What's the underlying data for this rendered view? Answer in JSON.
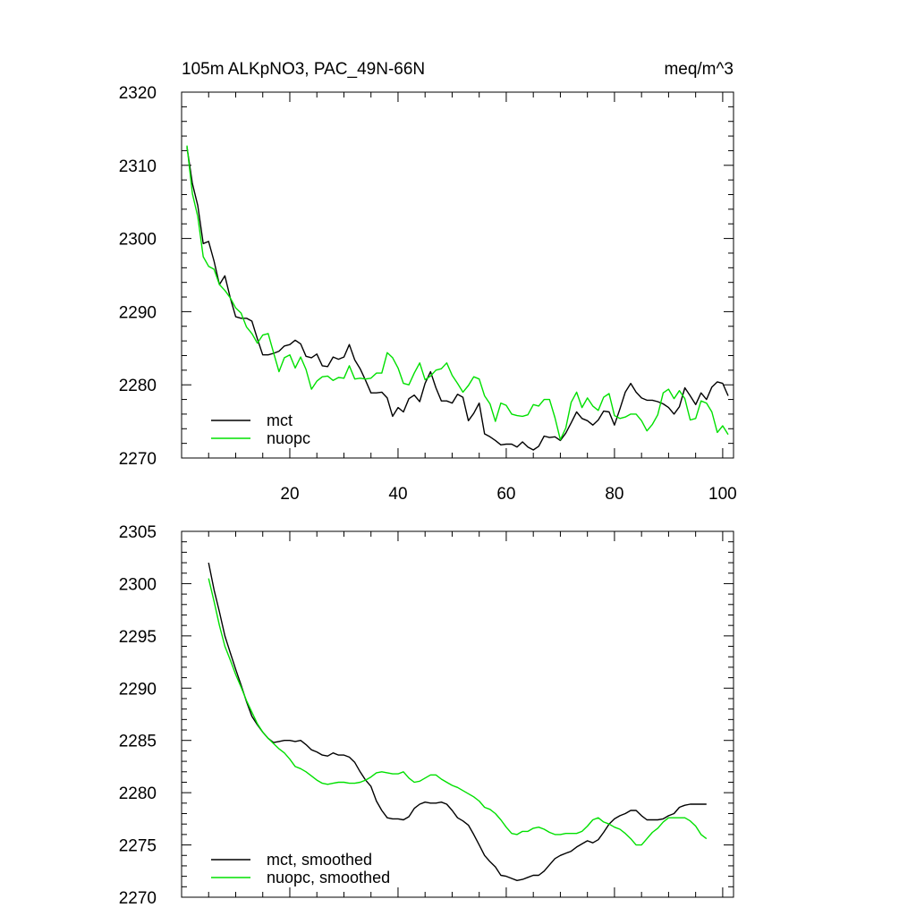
{
  "colors": {
    "mct": "#000000",
    "nuopc": "#00e000"
  },
  "chart_data": [
    {
      "type": "line",
      "title": "105m ALKpNO3, PAC_49N-66N",
      "units": "meq/m^3",
      "xlim": [
        0,
        102
      ],
      "ylim": [
        2270,
        2320
      ],
      "xticks": [
        20,
        40,
        60,
        80,
        100
      ],
      "xtick_labels": [
        "20",
        "40",
        "60",
        "80",
        "100"
      ],
      "xminor": [
        5,
        10,
        15,
        25,
        30,
        35,
        45,
        50,
        55,
        65,
        70,
        75,
        85,
        90,
        95
      ],
      "yticks": [
        2270,
        2280,
        2290,
        2300,
        2310,
        2320
      ],
      "ytick_labels": [
        "2270",
        "2280",
        "2290",
        "2300",
        "2310",
        "2320"
      ],
      "yminor_step": 2,
      "legend_position": "bottom-left",
      "series": [
        {
          "name": "mct",
          "color": "#000000",
          "x": [
            1,
            2,
            3,
            4,
            5,
            6,
            7,
            8,
            9,
            10,
            11,
            12,
            13,
            14,
            15,
            16,
            17,
            18,
            19,
            20,
            21,
            22,
            23,
            24,
            25,
            26,
            27,
            28,
            29,
            30,
            31,
            32,
            33,
            34,
            35,
            36,
            37,
            38,
            39,
            40,
            41,
            42,
            43,
            44,
            45,
            46,
            47,
            48,
            49,
            50,
            51,
            52,
            53,
            54,
            55,
            56,
            57,
            58,
            59,
            60,
            61,
            62,
            63,
            64,
            65,
            66,
            67,
            68,
            69,
            70,
            71,
            72,
            73,
            74,
            75,
            76,
            77,
            78,
            79,
            80,
            81,
            82,
            83,
            84,
            85,
            86,
            87,
            88,
            89,
            90,
            91,
            92,
            93,
            94,
            95,
            96,
            97,
            98,
            99,
            100,
            101
          ],
          "values": [
            2312.5,
            2307.5,
            2304.5,
            2299.3,
            2299.6,
            2296.9,
            2293.7,
            2294.9,
            2291.9,
            2289.3,
            2289.1,
            2289.1,
            2288.7,
            2286.3,
            2284.1,
            2284.1,
            2284.3,
            2284.6,
            2285.3,
            2285.5,
            2286.1,
            2285.6,
            2283.9,
            2283.7,
            2284.2,
            2282.6,
            2282.5,
            2283.8,
            2283.5,
            2283.8,
            2285.5,
            2283.4,
            2282.2,
            2280.6,
            2278.9,
            2278.9,
            2279.0,
            2278.2,
            2275.7,
            2276.9,
            2276.3,
            2278.1,
            2278.6,
            2277.7,
            2280.2,
            2281.8,
            2279.6,
            2277.8,
            2277.8,
            2277.5,
            2278.7,
            2278.3,
            2275.1,
            2276.1,
            2277.5,
            2273.3,
            2272.9,
            2272.4,
            2271.8,
            2271.9,
            2271.9,
            2271.5,
            2272.2,
            2271.5,
            2271.1,
            2271.6,
            2273.0,
            2272.8,
            2272.9,
            2272.4,
            2273.4,
            2274.8,
            2276.3,
            2275.4,
            2275.1,
            2274.5,
            2275.2,
            2276.4,
            2276.3,
            2274.5,
            2276.7,
            2279.0,
            2280.2,
            2279.0,
            2278.2,
            2277.9,
            2277.9,
            2277.7,
            2277.4,
            2276.9,
            2276.0,
            2277.0,
            2279.6,
            2278.5,
            2277.3,
            2278.9,
            2278.0,
            2279.7,
            2280.4,
            2280.2,
            2278.5
          ]
        },
        {
          "name": "nuopc",
          "color": "#00e000",
          "x": [
            1,
            2,
            3,
            4,
            5,
            6,
            7,
            8,
            9,
            10,
            11,
            12,
            13,
            14,
            15,
            16,
            17,
            18,
            19,
            20,
            21,
            22,
            23,
            24,
            25,
            26,
            27,
            28,
            29,
            30,
            31,
            32,
            33,
            34,
            35,
            36,
            37,
            38,
            39,
            40,
            41,
            42,
            43,
            44,
            45,
            46,
            47,
            48,
            49,
            50,
            51,
            52,
            53,
            54,
            55,
            56,
            57,
            58,
            59,
            60,
            61,
            62,
            63,
            64,
            65,
            66,
            67,
            68,
            69,
            70,
            71,
            72,
            73,
            74,
            75,
            76,
            77,
            78,
            79,
            80,
            81,
            82,
            83,
            84,
            85,
            86,
            87,
            88,
            89,
            90,
            91,
            92,
            93,
            94,
            95,
            96,
            97,
            98,
            99,
            100,
            101
          ],
          "values": [
            2312.7,
            2306.1,
            2303.0,
            2297.5,
            2296.2,
            2295.8,
            2293.7,
            2292.9,
            2291.9,
            2290.5,
            2289.8,
            2287.9,
            2287.0,
            2285.7,
            2286.8,
            2287.0,
            2284.4,
            2281.8,
            2283.7,
            2284.1,
            2282.3,
            2283.8,
            2282.1,
            2279.4,
            2280.5,
            2281.1,
            2281.2,
            2280.6,
            2281.0,
            2280.9,
            2282.6,
            2280.8,
            2280.9,
            2280.8,
            2280.9,
            2281.6,
            2281.6,
            2284.4,
            2283.7,
            2282.3,
            2280.2,
            2280.0,
            2281.6,
            2283.0,
            2280.7,
            2281.2,
            2282.0,
            2282.2,
            2283.0,
            2281.3,
            2280.2,
            2279.0,
            2279.9,
            2281.1,
            2280.8,
            2278.5,
            2277.4,
            2275.0,
            2277.5,
            2277.2,
            2276.0,
            2275.8,
            2275.7,
            2275.9,
            2277.3,
            2277.1,
            2278.0,
            2278.0,
            2275.5,
            2272.5,
            2274.1,
            2277.6,
            2279.0,
            2276.9,
            2278.2,
            2277.1,
            2276.5,
            2278.3,
            2278.8,
            2275.8,
            2275.4,
            2275.6,
            2276.0,
            2276.0,
            2275.1,
            2273.7,
            2274.6,
            2275.9,
            2278.9,
            2279.4,
            2278.1,
            2279.2,
            2278.1,
            2275.2,
            2275.4,
            2277.8,
            2277.5,
            2276.3,
            2273.5,
            2274.4,
            2273.2
          ]
        }
      ]
    },
    {
      "type": "line",
      "title": "",
      "xlim": [
        0,
        102
      ],
      "ylim": [
        2270,
        2305
      ],
      "xticks": [
        20,
        40,
        60,
        80,
        100
      ],
      "xtick_labels": [],
      "xminor": [
        5,
        10,
        15,
        25,
        30,
        35,
        45,
        50,
        55,
        65,
        70,
        75,
        85,
        90,
        95
      ],
      "yticks": [
        2270,
        2275,
        2280,
        2285,
        2290,
        2295,
        2300,
        2305
      ],
      "ytick_labels": [
        "2270",
        "2275",
        "2280",
        "2285",
        "2290",
        "2295",
        "2300",
        "2305"
      ],
      "yminor_step": 1,
      "legend_position": "bottom-left",
      "series": [
        {
          "name": "mct, smoothed",
          "color": "#000000",
          "x": [
            5,
            6,
            7,
            8,
            9,
            10,
            11,
            12,
            13,
            14,
            15,
            16,
            17,
            18,
            19,
            20,
            21,
            22,
            23,
            24,
            25,
            26,
            27,
            28,
            29,
            30,
            31,
            32,
            33,
            34,
            35,
            36,
            37,
            38,
            39,
            40,
            41,
            42,
            43,
            44,
            45,
            46,
            47,
            48,
            49,
            50,
            51,
            52,
            53,
            54,
            55,
            56,
            57,
            58,
            59,
            60,
            61,
            62,
            63,
            64,
            65,
            66,
            67,
            68,
            69,
            70,
            71,
            72,
            73,
            74,
            75,
            76,
            77,
            78,
            79,
            80,
            81,
            82,
            83,
            84,
            85,
            86,
            87,
            88,
            89,
            90,
            91,
            92,
            93,
            94,
            95,
            96,
            97
          ],
          "values": [
            2302.0,
            2299.4,
            2297.3,
            2295.0,
            2293.4,
            2291.8,
            2290.3,
            2288.7,
            2287.3,
            2286.5,
            2285.8,
            2285.2,
            2284.8,
            2284.9,
            2285.0,
            2285.0,
            2284.9,
            2285.0,
            2284.6,
            2284.1,
            2283.9,
            2283.6,
            2283.5,
            2283.8,
            2283.6,
            2283.6,
            2283.4,
            2282.9,
            2282.0,
            2281.2,
            2280.6,
            2279.2,
            2278.3,
            2277.6,
            2277.5,
            2277.5,
            2277.4,
            2277.7,
            2278.5,
            2278.9,
            2279.1,
            2279.0,
            2279.0,
            2279.1,
            2278.9,
            2278.3,
            2277.6,
            2277.3,
            2276.9,
            2276.0,
            2275.0,
            2274.0,
            2273.4,
            2272.9,
            2272.1,
            2272.0,
            2271.8,
            2271.6,
            2271.7,
            2271.9,
            2272.1,
            2272.1,
            2272.5,
            2273.1,
            2273.7,
            2274.0,
            2274.2,
            2274.4,
            2274.8,
            2275.1,
            2275.4,
            2275.2,
            2275.5,
            2276.2,
            2277.0,
            2277.5,
            2277.8,
            2278.0,
            2278.3,
            2278.3,
            2277.8,
            2277.4,
            2277.4,
            2277.4,
            2277.5,
            2277.8,
            2278.0,
            2278.6,
            2278.8,
            2278.9,
            2278.9,
            2278.9,
            2278.9
          ]
        },
        {
          "name": "nuopc, smoothed",
          "color": "#00e000",
          "x": [
            5,
            6,
            7,
            8,
            9,
            10,
            11,
            12,
            13,
            14,
            15,
            16,
            17,
            18,
            19,
            20,
            21,
            22,
            23,
            24,
            25,
            26,
            27,
            28,
            29,
            30,
            31,
            32,
            33,
            34,
            35,
            36,
            37,
            38,
            39,
            40,
            41,
            42,
            43,
            44,
            45,
            46,
            47,
            48,
            49,
            50,
            51,
            52,
            53,
            54,
            55,
            56,
            57,
            58,
            59,
            60,
            61,
            62,
            63,
            64,
            65,
            66,
            67,
            68,
            69,
            70,
            71,
            72,
            73,
            74,
            75,
            76,
            77,
            78,
            79,
            80,
            81,
            82,
            83,
            84,
            85,
            86,
            87,
            88,
            89,
            90,
            91,
            92,
            93,
            94,
            95,
            96,
            97
          ],
          "values": [
            2300.5,
            2298.3,
            2296.0,
            2294.0,
            2292.7,
            2291.3,
            2290.1,
            2288.8,
            2287.7,
            2286.6,
            2285.8,
            2285.2,
            2284.7,
            2284.2,
            2283.8,
            2283.2,
            2282.5,
            2282.3,
            2282.0,
            2281.6,
            2281.2,
            2280.9,
            2280.8,
            2280.9,
            2281.0,
            2281.0,
            2280.9,
            2280.9,
            2281.0,
            2281.2,
            2281.5,
            2281.9,
            2282.0,
            2281.9,
            2281.8,
            2281.8,
            2282.0,
            2281.4,
            2281.0,
            2281.1,
            2281.4,
            2281.7,
            2281.7,
            2281.3,
            2281.0,
            2280.7,
            2280.5,
            2280.2,
            2279.9,
            2279.6,
            2279.2,
            2278.6,
            2278.4,
            2278.0,
            2277.4,
            2276.7,
            2276.1,
            2276.0,
            2276.3,
            2276.3,
            2276.6,
            2276.7,
            2276.5,
            2276.2,
            2276.0,
            2276.0,
            2276.1,
            2276.1,
            2276.1,
            2276.3,
            2276.8,
            2277.4,
            2277.6,
            2277.2,
            2277.0,
            2276.7,
            2276.5,
            2276.1,
            2275.6,
            2275.0,
            2275.0,
            2275.6,
            2276.2,
            2276.6,
            2277.2,
            2277.6,
            2277.6,
            2277.6,
            2277.6,
            2277.3,
            2276.8,
            2276.0,
            2275.6
          ]
        }
      ]
    }
  ]
}
